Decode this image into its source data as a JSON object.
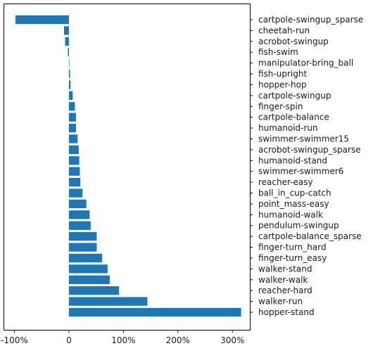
{
  "chart_data": {
    "type": "bar",
    "orientation": "horizontal",
    "bar_color": "#1f77b4",
    "x_tick_labels": [
      "-100%",
      "0",
      "100%",
      "200%",
      "300%"
    ],
    "x_tick_values": [
      -100,
      0,
      100,
      200,
      300
    ],
    "xlim": [
      -120,
      332
    ],
    "categories": [
      "cartpole-swingup_sparse",
      "cheetah-run",
      "acrobot-swingup",
      "fish-swim",
      "manipulator-bring_ball",
      "fish-upright",
      "hopper-hop",
      "cartpole-swingup",
      "finger-spin",
      "cartpole-balance",
      "humanoid-run",
      "swimmer-swimmer15",
      "acrobot-swingup_sparse",
      "humanoid-stand",
      "swimmer-swimmer6",
      "reacher-easy",
      "ball_in_cup-catch",
      "point_mass-easy",
      "humanoid-walk",
      "pendulum-swingup",
      "cartpole-balance_sparse",
      "finger-turn_hard",
      "finger-turn_easy",
      "walker-stand",
      "walker-walk",
      "reacher-hard",
      "walker-run",
      "hopper-stand"
    ],
    "values": [
      -98,
      -9,
      -7,
      -2,
      0,
      2,
      3,
      7,
      11,
      13,
      13,
      16,
      18,
      19,
      20,
      21,
      25,
      32,
      38,
      40,
      51,
      51,
      61,
      71,
      75,
      92,
      144,
      316
    ]
  }
}
